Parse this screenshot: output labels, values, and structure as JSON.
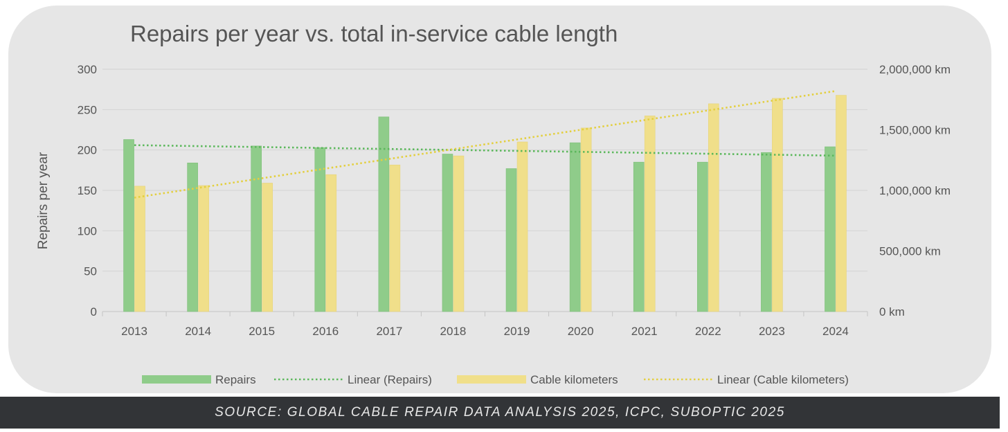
{
  "chart_data": {
    "type": "bar",
    "title": "Repairs per year vs. total in-service cable length",
    "ylabel": "Repairs per year",
    "y2label": "",
    "categories": [
      "2013",
      "2014",
      "2015",
      "2016",
      "2017",
      "2018",
      "2019",
      "2020",
      "2021",
      "2022",
      "2023",
      "2024"
    ],
    "ylim": [
      0,
      300
    ],
    "y_ticks": [
      "0",
      "50",
      "100",
      "150",
      "200",
      "250",
      "300"
    ],
    "y2lim": [
      0,
      2000000
    ],
    "y2_ticks": [
      "0 km",
      "500,000 km",
      "1,000,000 km",
      "1,500,000 km",
      "2,000,000 km"
    ],
    "grid": true,
    "legend_position": "bottom",
    "series": [
      {
        "name": "Repairs",
        "kind": "bar",
        "axis": "left",
        "color": "#8fcc8a",
        "values": [
          213,
          184,
          205,
          203,
          241,
          195,
          177,
          209,
          185,
          185,
          197,
          204
        ]
      },
      {
        "name": "Cable kilometers",
        "kind": "bar",
        "axis": "right",
        "color": "#f0df8a",
        "values": [
          1035000,
          1040000,
          1060000,
          1130000,
          1210000,
          1285000,
          1400000,
          1515000,
          1615000,
          1715000,
          1760000,
          1785000
        ]
      }
    ],
    "trendlines": [
      {
        "name": "Linear (Repairs)",
        "axis": "left",
        "color": "#5cb85c",
        "start": 206,
        "end": 193
      },
      {
        "name": "Linear (Cable kilometers)",
        "axis": "right",
        "color": "#e3cf3f",
        "start": 940000,
        "end": 1820000
      }
    ]
  },
  "source": {
    "text": "SOURCE: GLOBAL CABLE REPAIR DATA ANALYSIS 2025, ICPC, SUBOPTIC 2025"
  }
}
